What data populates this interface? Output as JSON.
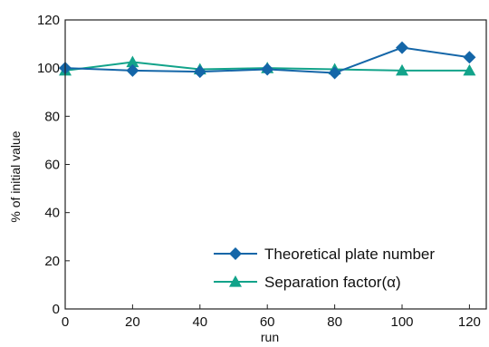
{
  "chart_data": {
    "type": "line",
    "title": "",
    "xlabel": "run",
    "ylabel": "% of initial value",
    "xlim": [
      0,
      125
    ],
    "ylim": [
      0,
      120
    ],
    "x_ticks": [
      0,
      20,
      40,
      60,
      80,
      100,
      120
    ],
    "y_ticks": [
      0,
      20,
      40,
      60,
      80,
      100,
      120
    ],
    "grid": false,
    "legend_position": "bottom-right",
    "series": [
      {
        "name": "Theoretical plate number",
        "marker": "diamond",
        "color": "#1466a8",
        "x": [
          0,
          20,
          40,
          60,
          80,
          100,
          120
        ],
        "y": [
          100,
          99,
          98.5,
          99.5,
          98,
          108.5,
          104.5
        ]
      },
      {
        "name": "Separation factor(α)",
        "marker": "triangle",
        "color": "#12a38a",
        "x": [
          0,
          20,
          40,
          60,
          80,
          100,
          120
        ],
        "y": [
          99,
          102.5,
          99.5,
          100,
          99.5,
          99,
          99
        ]
      }
    ]
  }
}
